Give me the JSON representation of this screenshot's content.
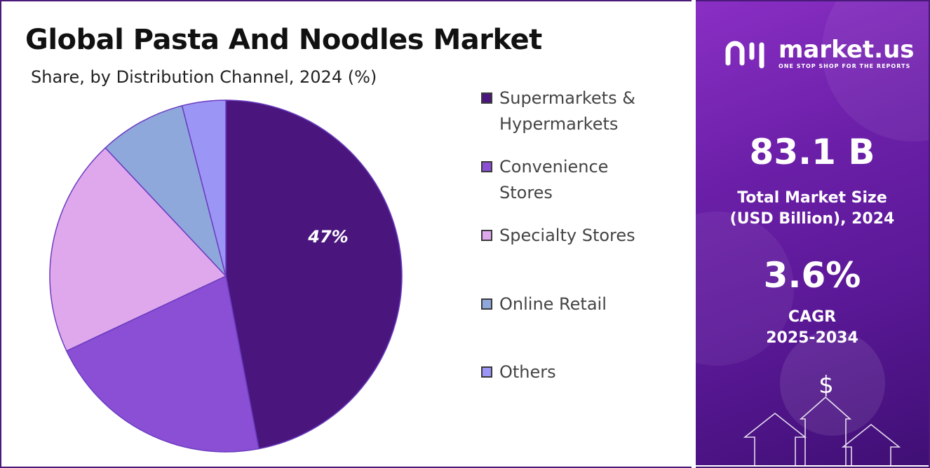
{
  "header": {
    "title": "Global Pasta And Noodles Market",
    "subtitle": "Share, by Distribution Channel, 2024 (%)"
  },
  "chart_data": {
    "type": "pie",
    "title": "Global Pasta And Noodles Market",
    "subtitle": "Share, by Distribution Channel, 2024 (%)",
    "categories": [
      "Supermarkets & Hypermarkets",
      "Convenience Stores",
      "Specialty Stores",
      "Online Retail",
      "Others"
    ],
    "values": [
      47,
      21,
      20,
      8,
      4
    ],
    "colors": [
      "#4a167e",
      "#8a4fd4",
      "#e0a8ec",
      "#8fa8dc",
      "#9b95f5"
    ],
    "data_labels": [
      "47%",
      "",
      "",
      "",
      ""
    ],
    "legend_position": "right"
  },
  "legend": {
    "items": [
      {
        "label_line1": "Supermarkets &",
        "label_line2": "Hypermarkets",
        "color": "#4a167e"
      },
      {
        "label_line1": "Convenience",
        "label_line2": "Stores",
        "color": "#8a4fd4"
      },
      {
        "label_line1": "Specialty Stores",
        "label_line2": "",
        "color": "#e0a8ec"
      },
      {
        "label_line1": "Online Retail",
        "label_line2": "",
        "color": "#8fa8dc"
      },
      {
        "label_line1": "Others",
        "label_line2": "",
        "color": "#9b95f5"
      }
    ]
  },
  "sidebar": {
    "logo_name": "market.us",
    "logo_tagline": "ONE STOP SHOP FOR THE REPORTS",
    "market_size_value": "83.1 B",
    "market_size_label_line1": "Total Market Size",
    "market_size_label_line2": "(USD Billion), 2024",
    "cagr_value": "3.6%",
    "cagr_label_line1": "CAGR",
    "cagr_label_line2": "2025-2034",
    "dollar_symbol": "$",
    "icons": [
      "market-us-logo-icon",
      "dollar-icon",
      "arrow-up-icon"
    ]
  }
}
